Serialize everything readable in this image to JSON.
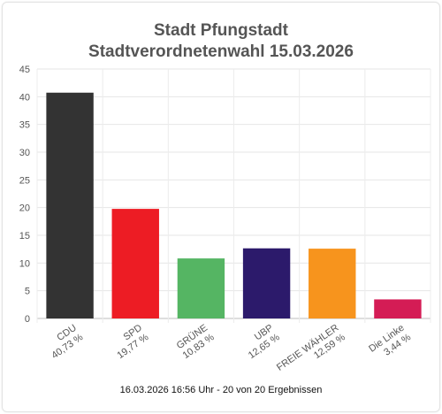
{
  "title_line1": "Stadt Pfungstadt",
  "title_line2": "Stadtverordnetenwahl 15.03.2026",
  "footer": "16.03.2026 16:56 Uhr - 20 von 20 Ergebnissen",
  "chart_data": {
    "type": "bar",
    "categories": [
      "CDU",
      "SPD",
      "GRÜNE",
      "UBP",
      "FREIE WÄHLER",
      "Die Linke"
    ],
    "value_labels": [
      "40,73 %",
      "19,77 %",
      "10,83 %",
      "12,65 %",
      "12,59 %",
      "3,44 %"
    ],
    "values": [
      40.73,
      19.77,
      10.83,
      12.65,
      12.59,
      3.44
    ],
    "colors": [
      "#333333",
      "#ed1c24",
      "#55b563",
      "#2c1a6b",
      "#f7941d",
      "#d41c55"
    ],
    "yticks": [
      0,
      5,
      10,
      15,
      20,
      25,
      30,
      35,
      40,
      45
    ],
    "ylim": [
      0,
      45
    ],
    "grid": true
  }
}
